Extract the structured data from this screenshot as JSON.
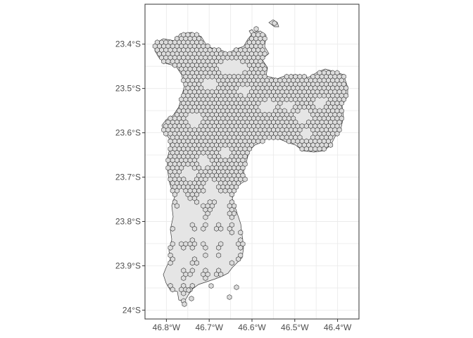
{
  "map": {
    "x_ticks": [
      {
        "value": -46.8,
        "label": "46.8°W"
      },
      {
        "value": -46.7,
        "label": "46.7°W"
      },
      {
        "value": -46.6,
        "label": "46.6°W"
      },
      {
        "value": -46.5,
        "label": "46.5°W"
      },
      {
        "value": -46.4,
        "label": "46.4°W"
      }
    ],
    "y_ticks": [
      {
        "value": -23.4,
        "label": "23.4°S"
      },
      {
        "value": -23.5,
        "label": "23.5°S"
      },
      {
        "value": -23.6,
        "label": "23.6°S"
      },
      {
        "value": -23.7,
        "label": "23.7°S"
      },
      {
        "value": -23.8,
        "label": "23.8°S"
      },
      {
        "value": -23.9,
        "label": "23.9°S"
      },
      {
        "value": -24.0,
        "label": "24°S"
      }
    ],
    "xlim": [
      -46.85,
      -46.35
    ],
    "ylim": [
      -24.02,
      -23.31
    ],
    "grid": true,
    "colors": {
      "land_fill": "#e5e5e5",
      "hex_fill": "#dcdcdc",
      "outline": "#333333",
      "grid": "#ebebeb",
      "axis_text": "#4d4d4d"
    }
  }
}
